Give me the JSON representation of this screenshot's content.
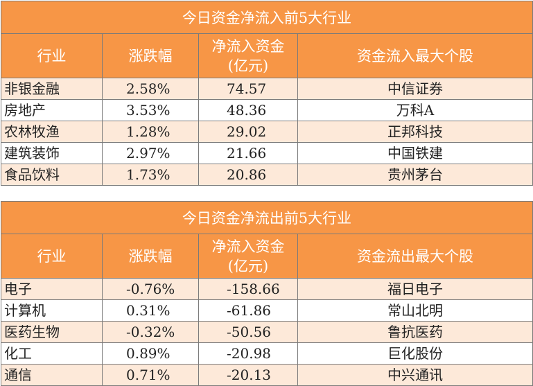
{
  "inflow": {
    "title": "今日资金净流入前5大行业",
    "headers": [
      "行业",
      "涨跌幅",
      "净流入资金",
      "(亿元)",
      "资金流入最大个股"
    ],
    "rows": [
      {
        "industry": "非银金融",
        "change": "2.58%",
        "net": "74.57",
        "stock": "中信证券"
      },
      {
        "industry": "房地产",
        "change": "3.53%",
        "net": "48.36",
        "stock": "万科A"
      },
      {
        "industry": "农林牧渔",
        "change": "1.28%",
        "net": "29.02",
        "stock": "正邦科技"
      },
      {
        "industry": "建筑装饰",
        "change": "2.97%",
        "net": "21.66",
        "stock": "中国铁建"
      },
      {
        "industry": "食品饮料",
        "change": "1.73%",
        "net": "20.86",
        "stock": "贵州茅台"
      }
    ]
  },
  "outflow": {
    "title": "今日资金净流出前5大行业",
    "headers": [
      "行业",
      "涨跌幅",
      "净流入资金",
      "(亿元)",
      "资金流出最大个股"
    ],
    "rows": [
      {
        "industry": "电子",
        "change": "-0.76%",
        "net": "-158.66",
        "stock": "福日电子"
      },
      {
        "industry": "计算机",
        "change": "0.31%",
        "net": "-61.86",
        "stock": "常山北明"
      },
      {
        "industry": "医药生物",
        "change": "-0.32%",
        "net": "-50.56",
        "stock": "鲁抗医药"
      },
      {
        "industry": "化工",
        "change": "0.89%",
        "net": "-20.98",
        "stock": "巨化股份"
      },
      {
        "industry": "通信",
        "change": "0.71%",
        "net": "-20.13",
        "stock": "中兴通讯"
      }
    ]
  }
}
